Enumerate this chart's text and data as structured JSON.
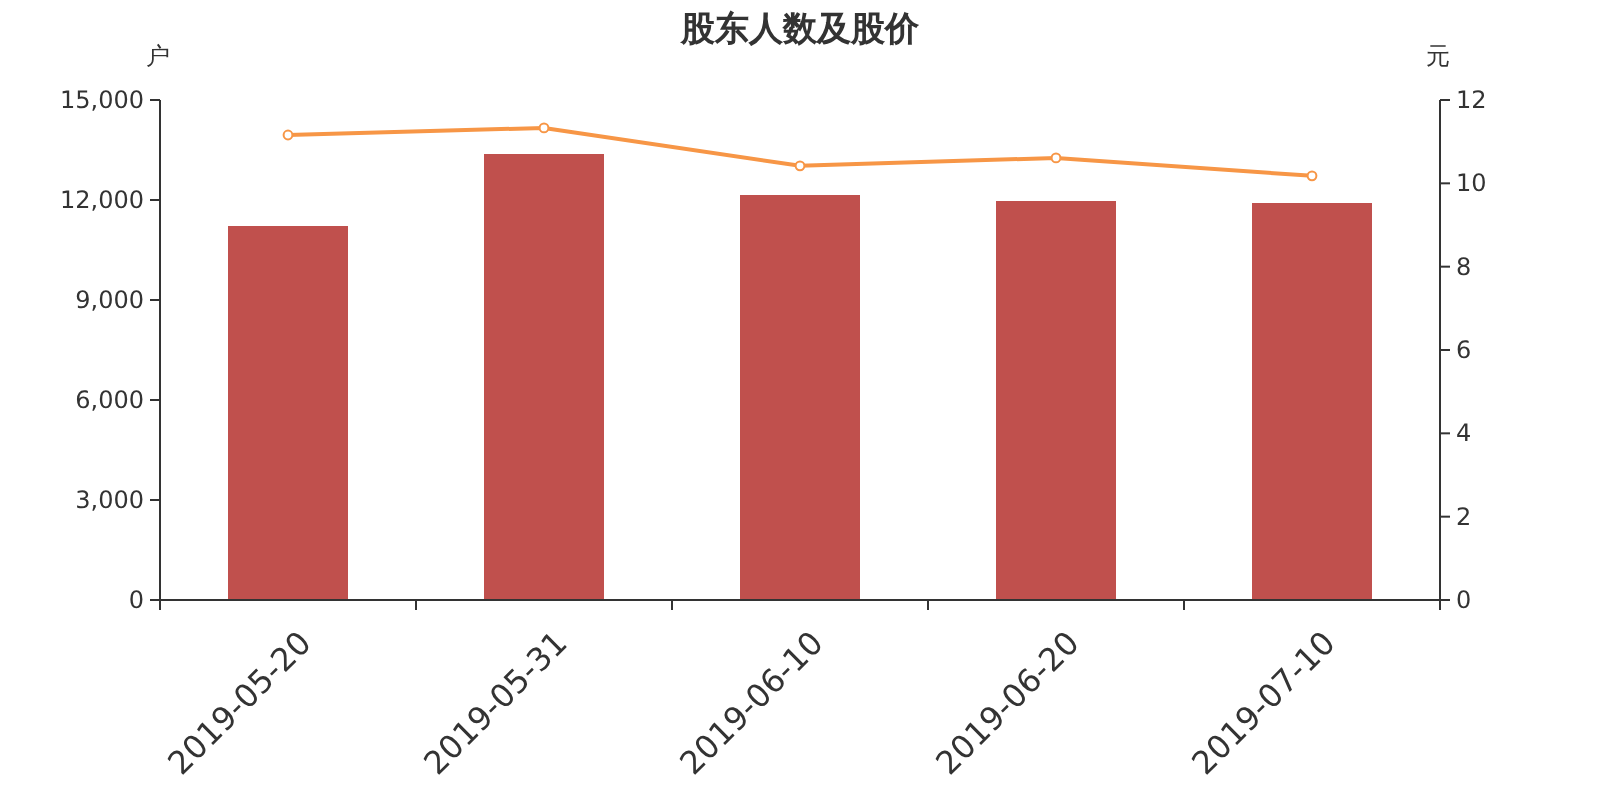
{
  "chart_data": {
    "type": "bar",
    "title": "股东人数及股价",
    "ylabel": "户",
    "y2label": "元",
    "categories": [
      "2019-05-20",
      "2019-05-31",
      "2019-06-10",
      "2019-06-20",
      "2019-07-10"
    ],
    "series": [
      {
        "color": "#c0504d",
        "values": [
          11220,
          13380,
          12150,
          11970,
          11910
        ]
      },
      {
        "type": "line",
        "axis": "y2",
        "color": "#f79646",
        "marker": "circle",
        "values": [
          11.16,
          11.33,
          10.42,
          10.61,
          10.18
        ]
      }
    ],
    "ylim": [
      0,
      15000
    ],
    "yticks": [
      0,
      {
        "value": 3000,
        "label": "3,000"
      },
      {
        "value": 6000,
        "label": "6,000"
      },
      {
        "value": 9000,
        "label": "9,000"
      },
      {
        "value": 12000,
        "label": "12,000"
      },
      {
        "value": 15000,
        "label": "15,000"
      }
    ],
    "y2lim": [
      0,
      12
    ],
    "y2ticks": [
      0,
      2,
      4,
      6,
      8,
      10,
      12
    ]
  }
}
